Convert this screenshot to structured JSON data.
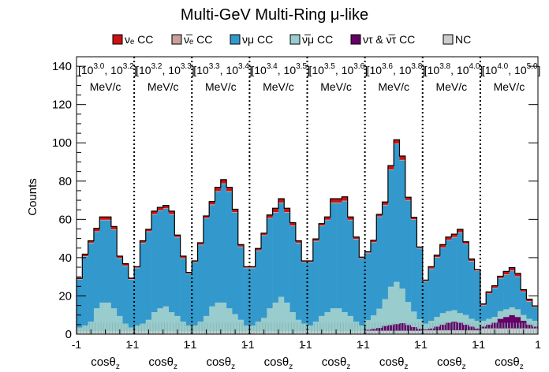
{
  "chart_data": {
    "type": "bar",
    "title": "Multi-GeV Multi-Ring μ-like",
    "ylabel": "Counts",
    "ylim": [
      0,
      145
    ],
    "yticks": [
      0,
      20,
      40,
      60,
      80,
      100,
      120,
      140
    ],
    "legend": [
      {
        "key": "nue",
        "label": "νₑ CC",
        "color": "#cc1111"
      },
      {
        "key": "nuebar",
        "label": "ν̅ₑ CC",
        "color": "#c9a09a"
      },
      {
        "key": "numu",
        "label": "νμ CC",
        "color": "#3399cc"
      },
      {
        "key": "numubar",
        "label": "ν̅μ CC",
        "color": "#99cccc"
      },
      {
        "key": "nutau",
        "label": "ντ & ν̅τ CC",
        "color": "#660066"
      },
      {
        "key": "nc",
        "label": "NC",
        "color": "#cccccc"
      }
    ],
    "panels": [
      {
        "label": "[10^3.0, 10^3.2] MeV/c",
        "xlabel": "cosθz",
        "xticks": [
          "-1",
          "1"
        ]
      },
      {
        "label": "[10^3.2, 10^3.3] MeV/c",
        "xlabel": "cosθz",
        "xticks": [
          "-1",
          "1"
        ]
      },
      {
        "label": "[10^3.3, 10^3.4] MeV/c",
        "xlabel": "cosθz",
        "xticks": [
          "-1",
          "1"
        ]
      },
      {
        "label": "[10^3.4, 10^3.5] MeV/c",
        "xlabel": "cosθz",
        "xticks": [
          "-1",
          "1"
        ]
      },
      {
        "label": "[10^3.5, 10^3.6] MeV/c",
        "xlabel": "cosθz",
        "xticks": [
          "-1",
          "1"
        ]
      },
      {
        "label": "[10^3.6, 10^3.8] MeV/c",
        "xlabel": "cosθz",
        "xticks": [
          "-1",
          "1"
        ]
      },
      {
        "label": "[10^3.8, 10^4.0] MeV/c",
        "xlabel": "cosθz",
        "xticks": [
          "-1",
          "1"
        ]
      },
      {
        "label": "[10^4.0, 10^5.0] MeV/c",
        "xlabel": "cosθz",
        "xticks": [
          "-1",
          "1"
        ]
      }
    ],
    "bins_per_panel": 10,
    "series": {
      "nc": [
        1.5,
        1.5,
        1.5,
        1.5,
        1.5,
        1.5,
        1.5,
        1.5,
        1.5,
        1.5,
        1.5,
        1.5,
        1.5,
        1.5,
        1.5,
        1.5,
        1.5,
        1.5,
        1.5,
        1.5,
        1.5,
        1.5,
        1.5,
        1.5,
        1.5,
        1.5,
        1.5,
        1.5,
        1.5,
        1.5,
        1.5,
        1.5,
        1.5,
        1.5,
        1.5,
        1.5,
        1.5,
        1.5,
        1.5,
        1.5,
        1.5,
        1.5,
        1.5,
        1.5,
        1.5,
        1.5,
        1.5,
        1.5,
        1.5,
        1.5,
        1.8,
        1.8,
        1.8,
        1.8,
        1.8,
        1.8,
        1.8,
        1.8,
        1.8,
        1.8,
        2,
        2,
        2,
        2,
        2,
        2,
        2,
        2,
        2,
        2,
        3,
        3,
        3,
        3,
        3,
        3,
        3,
        3,
        3,
        3
      ],
      "nutau": [
        0,
        0,
        0,
        0,
        0,
        0,
        0,
        0,
        0,
        0,
        0,
        0,
        0,
        0,
        0,
        0,
        0,
        0,
        0,
        0,
        0,
        0,
        0,
        0,
        0,
        0,
        0,
        0,
        0,
        0,
        0,
        0,
        0,
        0,
        0,
        0,
        0,
        0,
        0,
        0,
        0,
        0,
        0,
        0,
        0,
        0,
        0,
        0,
        0,
        0,
        0.5,
        1,
        1.5,
        2.5,
        3,
        3.5,
        4,
        3,
        2,
        1,
        0.5,
        1,
        2,
        3,
        4,
        4.5,
        4,
        3,
        2,
        1,
        1,
        2,
        3,
        5,
        6,
        7,
        6,
        4,
        2,
        1
      ],
      "numubar": [
        2,
        3,
        5,
        12,
        15,
        15,
        12,
        8,
        4,
        2,
        3,
        4,
        6,
        10,
        12,
        13,
        10,
        8,
        5,
        3,
        3,
        5,
        8,
        13,
        15,
        15,
        12,
        9,
        6,
        3,
        3,
        5,
        7,
        12,
        15,
        18,
        15,
        10,
        6,
        4,
        3,
        5,
        8,
        10,
        12,
        12,
        10,
        8,
        5,
        3,
        5,
        7,
        10,
        14,
        20,
        22,
        18,
        12,
        8,
        5,
        3,
        4,
        5,
        6,
        6,
        6,
        5,
        5,
        4,
        4,
        3,
        3,
        3,
        4,
        4,
        4,
        4,
        3,
        3,
        3
      ],
      "numu": [
        25,
        36,
        41,
        40,
        43,
        43,
        41,
        30,
        30,
        25,
        30,
        42,
        46,
        51,
        51,
        51,
        51,
        41,
        33,
        27,
        33,
        40,
        51,
        53,
        58,
        62,
        61,
        53,
        38,
        30,
        30,
        37,
        43,
        47,
        47,
        49,
        47,
        45,
        40,
        32,
        33,
        42,
        47,
        48,
        55,
        55,
        58,
        50,
        43,
        35,
        35,
        38,
        48,
        49,
        61,
        72,
        67,
        53,
        48,
        37,
        22,
        27,
        31,
        34,
        37,
        38,
        42,
        37,
        30,
        26,
        8,
        13,
        15,
        17,
        18,
        19,
        17,
        12,
        9,
        7
      ],
      "nuebar": [
        0.3,
        0.3,
        0.3,
        0.3,
        0.3,
        0.3,
        0.3,
        0.3,
        0.3,
        0.3,
        0.3,
        0.3,
        0.3,
        0.3,
        0.3,
        0.3,
        0.3,
        0.3,
        0.3,
        0.3,
        0.3,
        0.3,
        0.3,
        0.3,
        0.3,
        0.3,
        0.3,
        0.3,
        0.3,
        0.3,
        0.3,
        0.3,
        0.3,
        0.3,
        0.3,
        0.3,
        0.3,
        0.3,
        0.3,
        0.3,
        0.3,
        0.3,
        0.3,
        0.3,
        0.3,
        0.3,
        0.3,
        0.3,
        0.3,
        0.3,
        0.3,
        0.3,
        0.3,
        0.3,
        0.3,
        0.3,
        0.3,
        0.3,
        0.3,
        0.3,
        0.3,
        0.3,
        0.3,
        0.3,
        0.3,
        0.3,
        0.3,
        0.3,
        0.3,
        0.3,
        0.3,
        0.3,
        0.3,
        0.3,
        0.3,
        0.3,
        0.3,
        0.3,
        0.3,
        0.3
      ],
      "nue": [
        0.5,
        1,
        1,
        1.5,
        1.5,
        1.5,
        1.5,
        1,
        1,
        0.5,
        0.5,
        1,
        1,
        1.5,
        1.5,
        1.5,
        1.5,
        1,
        1,
        0.5,
        0.5,
        1,
        1,
        1.5,
        2,
        2,
        2,
        1.5,
        1,
        0.5,
        0.5,
        1,
        1,
        1.5,
        2,
        2,
        2,
        1.5,
        1,
        0.5,
        0.5,
        1,
        1,
        1.5,
        2,
        2,
        2,
        1.5,
        1,
        0.5,
        0.5,
        1,
        1,
        1.5,
        2,
        2,
        2,
        1.5,
        1,
        0.5,
        0.5,
        1,
        1,
        1.5,
        1.5,
        1.5,
        1.5,
        1,
        1,
        0.5,
        0.5,
        0.8,
        1,
        1,
        1.5,
        1.5,
        1.5,
        1,
        1,
        0.5
      ]
    }
  }
}
